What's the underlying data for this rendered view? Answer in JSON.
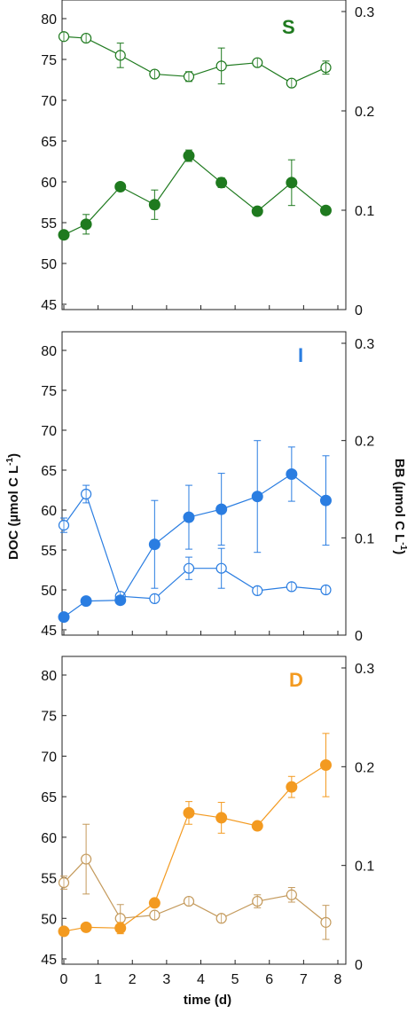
{
  "y_left_title": "DOC (µmol C L",
  "y_left_sup": "-1",
  "y_left_tail": ")",
  "y_right_title": "BB (µmol C L",
  "y_right_sup": "-1",
  "y_right_tail": ")",
  "x_title": "time (d)",
  "chart_data": [
    {
      "type": "line",
      "panel": "S",
      "color": "#1f7a1f",
      "x_ticks": [
        "0",
        "1",
        "2",
        "3",
        "4",
        "5",
        "6",
        "7",
        "8"
      ],
      "xlim": [
        0,
        8
      ],
      "ylim_left": [
        45,
        80
      ],
      "ylim_right": [
        0,
        0.3
      ],
      "y_left_ticks": [
        "45",
        "50",
        "55",
        "60",
        "65",
        "70",
        "75",
        "80"
      ],
      "y_right_ticks": [
        "0",
        "0.1",
        "0.2",
        "0.3"
      ],
      "series": [
        {
          "marker": "open",
          "axis": "left",
          "x": [
            0,
            0.65,
            1.65,
            2.65,
            3.65,
            4.6,
            5.65,
            6.65,
            7.65
          ],
          "y": [
            77.8,
            77.6,
            75.5,
            73.2,
            72.9,
            74.2,
            74.6,
            72.1,
            74.0
          ],
          "err": [
            0.4,
            0.3,
            1.5,
            0.4,
            0.6,
            2.2,
            0.2,
            0.4,
            0.8
          ]
        },
        {
          "marker": "filled",
          "axis": "left",
          "x": [
            0,
            0.65,
            1.65,
            2.65,
            3.65,
            4.6,
            5.65,
            6.65,
            7.65
          ],
          "y": [
            53.5,
            54.8,
            59.4,
            57.2,
            63.2,
            59.9,
            56.4,
            59.9,
            56.5
          ],
          "err": [
            0.3,
            1.2,
            0.3,
            1.8,
            0.7,
            0.6,
            0.3,
            2.8,
            0.3
          ]
        }
      ]
    },
    {
      "type": "line",
      "panel": "I",
      "color": "#2a7de1",
      "x_ticks": [
        "0",
        "1",
        "2",
        "3",
        "4",
        "5",
        "6",
        "7",
        "8"
      ],
      "xlim": [
        0,
        8
      ],
      "ylim_left": [
        45,
        80
      ],
      "ylim_right": [
        0,
        0.3
      ],
      "y_left_ticks": [
        "45",
        "50",
        "55",
        "60",
        "65",
        "70",
        "75",
        "80"
      ],
      "y_right_ticks": [
        "0",
        "0.1",
        "0.2",
        "0.3"
      ],
      "series": [
        {
          "marker": "open",
          "axis": "left",
          "x": [
            0,
            0.65,
            1.65,
            2.65,
            3.65,
            4.6,
            5.65,
            6.65,
            7.65
          ],
          "y": [
            58.1,
            62.0,
            49.2,
            48.9,
            52.7,
            52.7,
            49.9,
            50.4,
            50.0
          ],
          "err": [
            0.9,
            1.1,
            0.3,
            0.3,
            1.4,
            2.5,
            0.3,
            0.3,
            0.3
          ]
        },
        {
          "marker": "filled",
          "axis": "left",
          "x": [
            0,
            0.65,
            1.65,
            2.65,
            3.65,
            4.6,
            5.65,
            6.65,
            7.65
          ],
          "y": [
            46.6,
            48.6,
            48.7,
            55.7,
            59.1,
            60.1,
            61.7,
            64.5,
            61.2
          ],
          "err": [
            0.2,
            0.2,
            0.2,
            5.5,
            4.0,
            4.5,
            7.0,
            3.4,
            5.6
          ]
        }
      ]
    },
    {
      "type": "line",
      "panel": "D",
      "color_open": "#c49a5c",
      "color_filled": "#f39a20",
      "color": "#f39a20",
      "x_ticks": [
        "0",
        "1",
        "2",
        "3",
        "4",
        "5",
        "6",
        "7",
        "8"
      ],
      "xlim": [
        0,
        8
      ],
      "ylim_left": [
        45,
        80
      ],
      "ylim_right": [
        0,
        0.3
      ],
      "y_left_ticks": [
        "45",
        "50",
        "55",
        "60",
        "65",
        "70",
        "75",
        "80"
      ],
      "y_right_ticks": [
        "0",
        "0.1",
        "0.2",
        "0.3"
      ],
      "series": [
        {
          "marker": "open",
          "axis": "left",
          "x": [
            0,
            0.65,
            1.65,
            2.65,
            3.65,
            4.6,
            5.65,
            6.65,
            7.65
          ],
          "y": [
            54.4,
            57.3,
            50.0,
            50.4,
            52.1,
            50.0,
            52.1,
            52.9,
            49.5
          ],
          "err": [
            0.8,
            4.3,
            1.7,
            0.3,
            0.3,
            0.3,
            0.8,
            0.9,
            2.1
          ]
        },
        {
          "marker": "filled",
          "axis": "left",
          "x": [
            0,
            0.65,
            1.65,
            2.65,
            3.65,
            4.6,
            5.65,
            6.65,
            7.65
          ],
          "y": [
            48.4,
            48.9,
            48.8,
            51.9,
            63.0,
            62.4,
            61.4,
            66.2,
            68.9
          ],
          "err": [
            0.2,
            0.3,
            0.7,
            0.3,
            1.4,
            1.9,
            0.2,
            1.3,
            3.9
          ]
        }
      ]
    }
  ]
}
